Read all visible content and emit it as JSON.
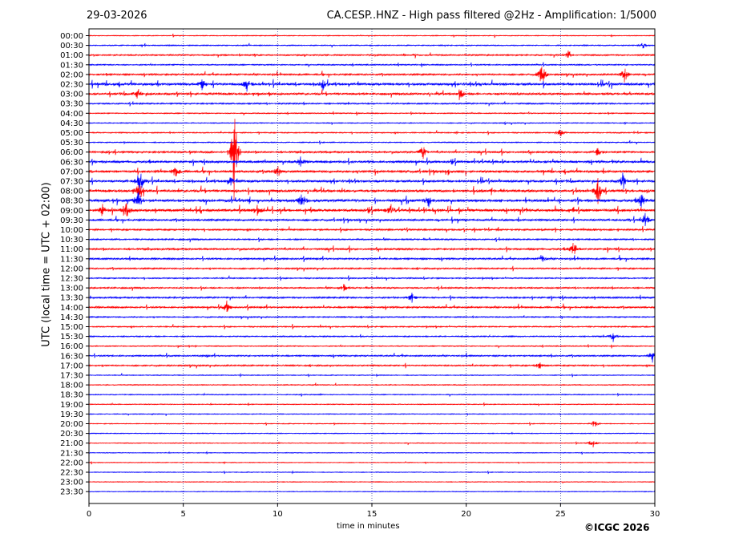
{
  "header": {
    "date": "29-03-2026",
    "title": "CA.CESP..HNZ - High pass filtered @2Hz - Amplification: 1/5000"
  },
  "footer": {
    "copyright": "©ICGC 2026"
  },
  "chart_data": {
    "type": "line",
    "xlabel": "time in minutes",
    "ylabel": "UTC (local time = UTC + 02:00)",
    "xlim": [
      0,
      30
    ],
    "x_ticks": [
      "0",
      "5",
      "10",
      "15",
      "20",
      "25",
      "30"
    ],
    "x_tick_values": [
      0,
      5,
      10,
      15,
      20,
      25,
      30
    ],
    "grid": "vertical dotted lines every 5 minutes",
    "colors": {
      "odd_rows": "#ff0000",
      "even_rows": "#0000ff"
    },
    "rows": [
      "00:00",
      "00:30",
      "01:00",
      "01:30",
      "02:00",
      "02:30",
      "03:00",
      "03:30",
      "04:00",
      "04:30",
      "05:00",
      "05:30",
      "06:00",
      "06:30",
      "07:00",
      "07:30",
      "08:00",
      "08:30",
      "09:00",
      "09:30",
      "10:00",
      "10:30",
      "11:00",
      "11:30",
      "12:00",
      "12:30",
      "13:00",
      "13:30",
      "14:00",
      "14:30",
      "15:00",
      "15:30",
      "16:00",
      "16:30",
      "17:00",
      "17:30",
      "18:00",
      "18:30",
      "19:00",
      "19:30",
      "20:00",
      "20:30",
      "21:00",
      "21:30",
      "22:00",
      "22:30",
      "23:00",
      "23:30"
    ],
    "row_activity": [
      0.1,
      0.2,
      0.4,
      0.3,
      0.5,
      0.9,
      0.7,
      0.4,
      0.2,
      0.15,
      0.25,
      0.2,
      0.6,
      0.8,
      0.8,
      0.8,
      0.9,
      1.0,
      1.0,
      0.6,
      0.5,
      0.4,
      0.6,
      0.5,
      0.4,
      0.3,
      0.4,
      0.5,
      0.5,
      0.3,
      0.3,
      0.3,
      0.2,
      0.4,
      0.4,
      0.1,
      0.15,
      0.15,
      0.1,
      0.1,
      0.1,
      0.1,
      0.1,
      0.05,
      0.05,
      0.05,
      0.05,
      0.05
    ],
    "events": [
      {
        "row": "00:30",
        "minute": 29.4,
        "amplitude": 0.4
      },
      {
        "row": "01:00",
        "minute": 25.4,
        "amplitude": 0.5
      },
      {
        "row": "02:00",
        "minute": 24.0,
        "amplitude": 1.8
      },
      {
        "row": "02:00",
        "minute": 28.4,
        "amplitude": 0.9
      },
      {
        "row": "02:30",
        "minute": 6.0,
        "amplitude": 0.7
      },
      {
        "row": "02:30",
        "minute": 8.4,
        "amplitude": 0.9
      },
      {
        "row": "02:30",
        "minute": 12.4,
        "amplitude": 0.6
      },
      {
        "row": "03:00",
        "minute": 2.6,
        "amplitude": 0.6
      },
      {
        "row": "03:00",
        "minute": 19.7,
        "amplitude": 0.6
      },
      {
        "row": "05:00",
        "minute": 25.0,
        "amplitude": 0.5
      },
      {
        "row": "06:00",
        "minute": 7.7,
        "amplitude": 5.5
      },
      {
        "row": "06:00",
        "minute": 17.7,
        "amplitude": 0.8
      },
      {
        "row": "06:00",
        "minute": 27.0,
        "amplitude": 0.6
      },
      {
        "row": "06:30",
        "minute": 11.2,
        "amplitude": 0.6
      },
      {
        "row": "07:00",
        "minute": 4.6,
        "amplitude": 0.8
      },
      {
        "row": "07:00",
        "minute": 10.0,
        "amplitude": 0.7
      },
      {
        "row": "07:30",
        "minute": 2.7,
        "amplitude": 1.6
      },
      {
        "row": "07:30",
        "minute": 7.5,
        "amplitude": 0.6
      },
      {
        "row": "07:30",
        "minute": 28.3,
        "amplitude": 0.9
      },
      {
        "row": "08:00",
        "minute": 2.6,
        "amplitude": 0.8
      },
      {
        "row": "08:00",
        "minute": 27.0,
        "amplitude": 1.6
      },
      {
        "row": "08:30",
        "minute": 2.6,
        "amplitude": 1.2
      },
      {
        "row": "08:30",
        "minute": 11.3,
        "amplitude": 1.1
      },
      {
        "row": "08:30",
        "minute": 18.0,
        "amplitude": 0.7
      },
      {
        "row": "08:30",
        "minute": 29.3,
        "amplitude": 0.8
      },
      {
        "row": "09:00",
        "minute": 0.7,
        "amplitude": 0.7
      },
      {
        "row": "09:00",
        "minute": 2.0,
        "amplitude": 0.8
      },
      {
        "row": "09:00",
        "minute": 8.9,
        "amplitude": 0.7
      },
      {
        "row": "09:00",
        "minute": 16.0,
        "amplitude": 0.7
      },
      {
        "row": "09:30",
        "minute": 29.5,
        "amplitude": 1.0
      },
      {
        "row": "11:00",
        "minute": 25.7,
        "amplitude": 0.9
      },
      {
        "row": "11:30",
        "minute": 24.0,
        "amplitude": 0.5
      },
      {
        "row": "13:00",
        "minute": 13.5,
        "amplitude": 0.5
      },
      {
        "row": "13:30",
        "minute": 17.1,
        "amplitude": 0.6
      },
      {
        "row": "14:00",
        "minute": 7.3,
        "amplitude": 0.7
      },
      {
        "row": "15:30",
        "minute": 27.8,
        "amplitude": 0.6
      },
      {
        "row": "16:30",
        "minute": 29.9,
        "amplitude": 0.9
      },
      {
        "row": "17:00",
        "minute": 23.9,
        "amplitude": 0.4
      },
      {
        "row": "20:00",
        "minute": 26.8,
        "amplitude": 0.5
      },
      {
        "row": "21:00",
        "minute": 26.7,
        "amplitude": 0.6
      }
    ]
  }
}
